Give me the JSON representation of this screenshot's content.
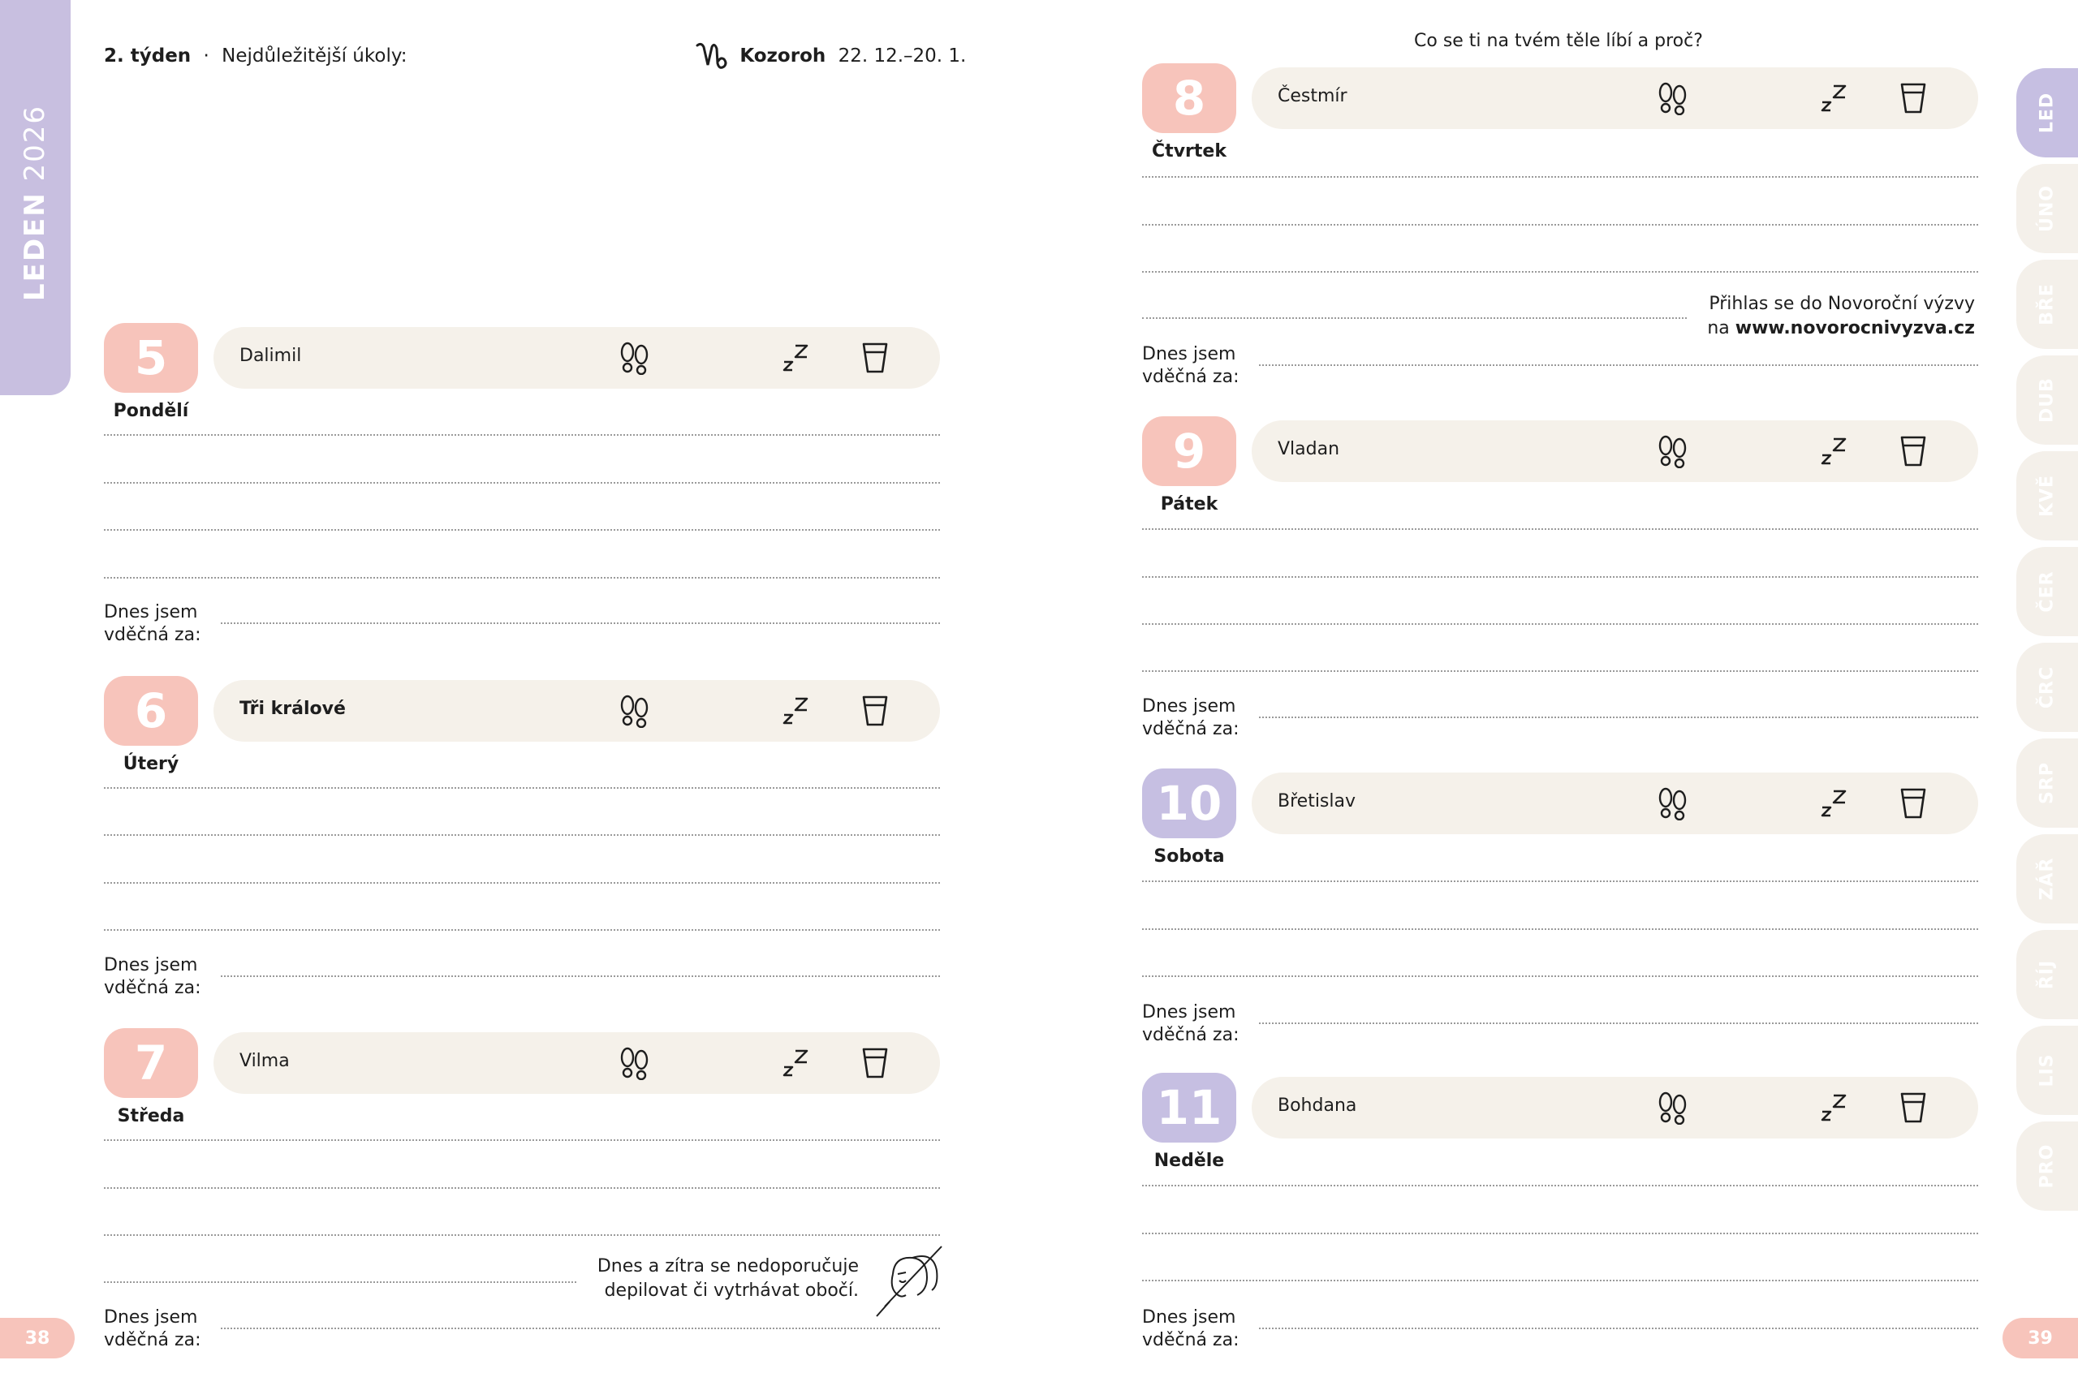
{
  "spine": {
    "month": "LEDEN",
    "year": "2026"
  },
  "header": {
    "week": "2. týden",
    "separator": "·",
    "tasks_label": "Nejdůležitější úkoly:",
    "zodiac_symbol": "♑",
    "zodiac_name": "Kozoroh",
    "zodiac_dates": "22. 12.–20. 1."
  },
  "question": "Co se ti na tvém těle líbí a proč?",
  "days": [
    {
      "num": "5",
      "name": "Pondělí",
      "nameday": "Dalimil",
      "color": "#f7c4bb"
    },
    {
      "num": "6",
      "name": "Úterý",
      "nameday": "Tři králové",
      "color": "#f7c4bb"
    },
    {
      "num": "7",
      "name": "Středa",
      "nameday": "Vilma",
      "color": "#f7c4bb"
    },
    {
      "num": "8",
      "name": "Čtvrtek",
      "nameday": "Čestmír",
      "color": "#f7c4bb"
    },
    {
      "num": "9",
      "name": "Pátek",
      "nameday": "Vladan",
      "color": "#f7c4bb"
    },
    {
      "num": "10",
      "name": "Sobota",
      "nameday": "Břetislav",
      "color": "#c6bfe2"
    },
    {
      "num": "11",
      "name": "Neděle",
      "nameday": "Bohdana",
      "color": "#c6bfe2"
    }
  ],
  "gratitude": {
    "line1": "Dnes jsem",
    "line2": "vděčná za:"
  },
  "icons": {
    "steps": "footprints-icon",
    "sleep": "sleep-zzz-icon",
    "water": "water-glass-icon"
  },
  "tip_left": {
    "line1": "Dnes a zítra se nedoporučuje",
    "line2": "depilovat či vytrhávat obočí."
  },
  "tip_right": {
    "line1": "Přihlas se do Novoroční výzvy",
    "line2_prefix": "na",
    "url": "www.novorocnivyzva.cz"
  },
  "month_tabs": [
    "LED",
    "ÚNO",
    "BŘE",
    "DUB",
    "KVĚ",
    "ČER",
    "ČRC",
    "SRP",
    "ZÁŘ",
    "ŘÍJ",
    "LIS",
    "PRO"
  ],
  "active_tab": "LED",
  "page_left": "38",
  "page_right": "39"
}
